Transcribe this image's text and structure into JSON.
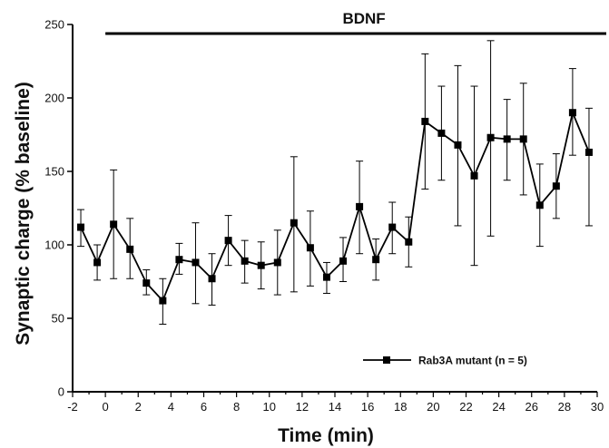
{
  "chart_data": {
    "type": "line",
    "xlabel": "Time (min)",
    "ylabel": "Synaptic charge (% baseline)",
    "xlim": [
      -2,
      30
    ],
    "ylim": [
      0,
      250
    ],
    "x_ticks": [
      -2,
      0,
      2,
      4,
      6,
      8,
      10,
      12,
      14,
      16,
      18,
      20,
      22,
      24,
      26,
      28,
      30
    ],
    "y_ticks": [
      0,
      50,
      100,
      150,
      200,
      250
    ],
    "grid": false,
    "legend_position": "bottom-right",
    "annotation": {
      "label": "BDNF",
      "x_start": 0,
      "x_end": 30
    },
    "series": [
      {
        "name": "Rab3A mutant (n = 5)",
        "marker": "square",
        "color": "#000000",
        "x": [
          -1.5,
          -0.5,
          0.5,
          1.5,
          2.5,
          3.5,
          4.5,
          5.5,
          6.5,
          7.5,
          8.5,
          9.5,
          10.5,
          11.5,
          12.5,
          13.5,
          14.5,
          15.5,
          16.5,
          17.5,
          18.5,
          19.5,
          20.5,
          21.5,
          22.5,
          23.5,
          24.5,
          25.5,
          26.5,
          27.5,
          28.5,
          29.5
        ],
        "y": [
          112,
          88,
          114,
          97,
          74,
          62,
          90,
          88,
          77,
          103,
          89,
          86,
          88,
          115,
          98,
          78,
          89,
          126,
          90,
          112,
          102,
          184,
          176,
          168,
          147,
          173,
          172,
          172,
          127,
          140,
          190,
          163
        ],
        "err_upper": [
          124,
          100,
          151,
          118,
          83,
          77,
          101,
          115,
          94,
          120,
          103,
          102,
          110,
          160,
          123,
          88,
          105,
          157,
          104,
          129,
          119,
          230,
          208,
          222,
          208,
          239,
          199,
          210,
          155,
          162,
          220,
          193
        ],
        "err_lower": [
          99,
          76,
          77,
          77,
          66,
          46,
          80,
          60,
          59,
          86,
          74,
          70,
          66,
          68,
          72,
          67,
          75,
          94,
          76,
          94,
          85,
          138,
          144,
          113,
          86,
          106,
          144,
          134,
          99,
          118,
          161,
          113
        ]
      }
    ]
  }
}
